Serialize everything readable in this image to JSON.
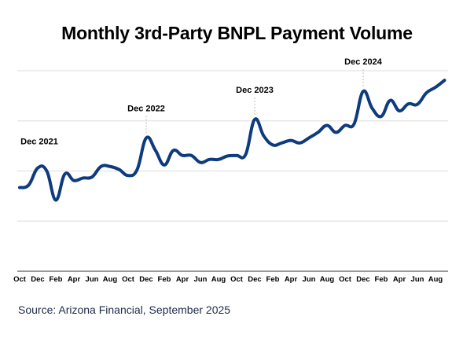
{
  "chart_data": {
    "type": "line",
    "title": "Monthly 3rd-Party BNPL Payment Volume",
    "xlabel": "",
    "ylabel": "",
    "grid": true,
    "ylim": [
      0,
      4
    ],
    "x_tick_labels": [
      "Oct",
      "Dec",
      "Feb",
      "Apr",
      "Jun",
      "Aug",
      "Oct",
      "Dec",
      "Feb",
      "Apr",
      "Jun",
      "Aug",
      "Oct",
      "Dec",
      "Feb",
      "Apr",
      "Jun",
      "Aug",
      "Oct",
      "Dec",
      "Feb",
      "Apr",
      "Jun",
      "Aug"
    ],
    "x_start": "Oct 2021",
    "x_end": "Sep 2025",
    "series": [
      {
        "name": "Payment Volume (relative, gridline units)",
        "color": "#0d3b7e",
        "values": [
          1.67,
          1.72,
          2.06,
          2.0,
          1.42,
          1.94,
          1.81,
          1.86,
          1.88,
          2.09,
          2.09,
          2.03,
          1.91,
          2.03,
          2.66,
          2.42,
          2.12,
          2.41,
          2.31,
          2.31,
          2.17,
          2.23,
          2.23,
          2.3,
          2.31,
          2.33,
          3.03,
          2.7,
          2.52,
          2.56,
          2.61,
          2.56,
          2.66,
          2.77,
          2.91,
          2.77,
          2.91,
          2.94,
          3.59,
          3.25,
          3.09,
          3.41,
          3.2,
          3.34,
          3.33,
          3.56,
          3.67,
          3.81
        ]
      }
    ],
    "annotations": [
      {
        "label": "Dec 2021",
        "index": 2,
        "leader": false
      },
      {
        "label": "Dec 2022",
        "index": 14,
        "leader": true
      },
      {
        "label": "Dec 2023",
        "index": 26,
        "leader": true
      },
      {
        "label": "Dec 2024",
        "index": 38,
        "leader": true
      }
    ]
  },
  "source": "Source: Arizona Financial, September 2025"
}
